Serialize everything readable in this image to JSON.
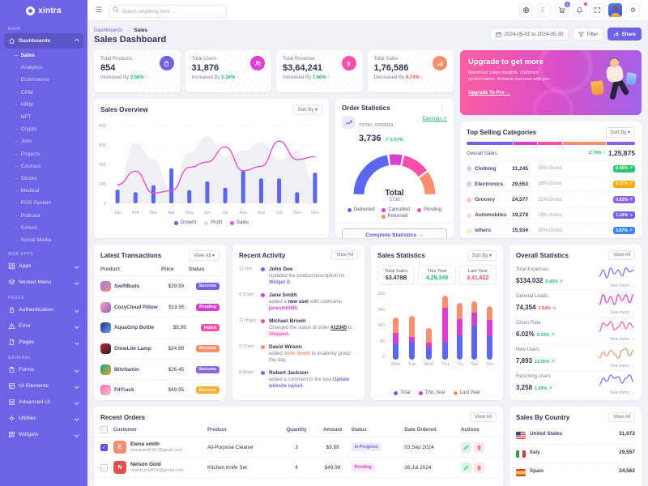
{
  "brand": {
    "name": "xintra"
  },
  "header": {
    "search_placeholder": "Search anything here ...",
    "cart_badge": "5",
    "icons": [
      "language-icon",
      "moon-icon",
      "cart-icon",
      "bell-icon",
      "fullscreen-icon",
      "avatar",
      "gear-icon"
    ]
  },
  "breadcrumb": {
    "parent": "Dashboards",
    "separator": "→",
    "current": "Sales"
  },
  "page": {
    "title": "Sales Dashboard",
    "date_range": "2024-05-01 to 2024-05-30",
    "filter_label": "Filter",
    "share_label": "Share"
  },
  "sidebar": {
    "sections": [
      {
        "heading": "MAIN",
        "items": [
          {
            "label": "Dashboards",
            "icon": "home-icon",
            "chevron": "up",
            "active": true,
            "children": [
              "Sales",
              "Analytics",
              "Ecommerce",
              "CRM",
              "HRM",
              "NFT",
              "Crypto",
              "Jobs",
              "Projects",
              "Courses",
              "Stocks",
              "Medical",
              "POS System",
              "Podcast",
              "School",
              "Social Media"
            ],
            "active_child": "Sales"
          }
        ]
      },
      {
        "heading": "WEB APPS",
        "items": [
          {
            "label": "Apps",
            "icon": "grid-icon",
            "chevron": "down"
          },
          {
            "label": "Nested Menu",
            "icon": "layers-icon",
            "chevron": "down"
          }
        ]
      },
      {
        "heading": "PAGES",
        "items": [
          {
            "label": "Authentication",
            "icon": "lock-icon",
            "chevron": "down"
          },
          {
            "label": "Error",
            "icon": "alert-icon",
            "chevron": "down"
          },
          {
            "label": "Pages",
            "icon": "file-icon",
            "chevron": "down"
          }
        ]
      },
      {
        "heading": "GENERAL",
        "items": [
          {
            "label": "Forms",
            "icon": "clipboard-icon",
            "chevron": "down"
          },
          {
            "label": "UI Elements",
            "icon": "layout-icon",
            "chevron": "down"
          },
          {
            "label": "Advanced UI",
            "icon": "stack-icon",
            "chevron": "down"
          },
          {
            "label": "Utilities",
            "icon": "tool-icon",
            "chevron": "down"
          },
          {
            "label": "Widgets",
            "icon": "widget-icon",
            "chevron": "down"
          }
        ]
      }
    ]
  },
  "kpis": [
    {
      "label": "Total Products",
      "value": "854",
      "prefix_text": "Increased By",
      "delta": "2.56%",
      "dir": "up",
      "icon": "bag-icon",
      "color": "#6e63e8"
    },
    {
      "label": "Total Users",
      "value": "31,876",
      "prefix_text": "Increased By",
      "delta": "0.34%",
      "dir": "up",
      "icon": "users-icon",
      "color": "#e13ddb"
    },
    {
      "label": "Total Revenue",
      "value": "$3,64,241",
      "prefix_text": "Increased By",
      "delta": "7.66%",
      "dir": "up",
      "icon": "dollar-icon",
      "color": "#fb4fa9"
    },
    {
      "label": "Total Sales",
      "value": "1,76,586",
      "prefix_text": "Decreased By",
      "delta": "0.74%",
      "dir": "down",
      "icon": "chart-icon",
      "color": "#fb8e6e"
    }
  ],
  "banner": {
    "title": "Upgrade to get more",
    "body": "Maximize sales insights. Optimize performance. Achieve success with pro.",
    "cta": "Upgrade To Pro →"
  },
  "panels": {
    "sales_overview": {
      "title": "Sales Overview",
      "sort_label": "Sort By ▾",
      "chart_data": {
        "type": "combo",
        "categories": [
          "Jan",
          "Feb",
          "Mar",
          "Apr",
          "May",
          "Jun",
          "Jul",
          "Agu",
          "Sep",
          "Oct",
          "Nov",
          "Dec"
        ],
        "ylim": [
          0,
          800
        ],
        "yticks": [
          0,
          200,
          400,
          600,
          800
        ],
        "series": [
          {
            "name": "Growth",
            "kind": "bar",
            "color": "#5b67f1",
            "values": [
              140,
              115,
              185,
              360,
              135,
              225,
              160,
              330,
              255,
              255,
              115,
              315
            ]
          },
          {
            "name": "Profit",
            "kind": "area",
            "color": "#ececf2",
            "legend_color": "#d9d9e3",
            "values": [
              180,
              620,
              450,
              140,
              520,
              690,
              480,
              540,
              630,
              450,
              540,
              220
            ]
          },
          {
            "name": "Sales",
            "kind": "line",
            "color": "#e354d4",
            "values": [
              190,
              330,
              105,
              130,
              370,
              425,
              580,
              335,
              380,
              640,
              450,
              480
            ]
          }
        ]
      }
    },
    "order_statistics": {
      "title": "Order Statistics",
      "total_label": "TOTAL ORDERS",
      "total": "3,736",
      "delta": "↗ 0.57%",
      "earnings_link": "Earnings ↗",
      "center_label": "Total",
      "center_value": "3736",
      "cta": "Complete Statistics →",
      "chart_data": {
        "type": "donut-semi",
        "segments": [
          {
            "name": "Delivered",
            "value": 45,
            "color": "#5b67f1"
          },
          {
            "name": "Cancelled",
            "value": 12,
            "color": "#d63fd0"
          },
          {
            "name": "Pending",
            "value": 23,
            "color": "#fb4fa9"
          },
          {
            "name": "Returned",
            "value": 20,
            "color": "#fb8e6e"
          }
        ]
      }
    },
    "top_selling": {
      "title": "Top Selling Categories",
      "sort_label": "Sort By ▾",
      "bar_segments": [
        {
          "color": "#6e63e8",
          "w": 28
        },
        {
          "color": "#d63fd0",
          "w": 14
        },
        {
          "color": "#fb4fa9",
          "w": 15
        },
        {
          "color": "#fb8e6e",
          "w": 26
        },
        {
          "color": "#8c62e9",
          "w": 17
        }
      ],
      "overall_label": "Overall Sales",
      "overall_delta": "2.74% ↑",
      "overall_value": "1,25,875",
      "rows": [
        {
          "name": "Clothing",
          "color": "#6e63e8",
          "value": "31,245",
          "gross": "25% Gross",
          "badge": "0.45% ↗",
          "badge_color": "#29c76f"
        },
        {
          "name": "Electronics",
          "color": "#d63fd0",
          "value": "29,553",
          "gross": "16% Gross",
          "badge": "0.27% ↗",
          "badge_color": "#ffab00"
        },
        {
          "name": "Grocery",
          "color": "#fb4fa9",
          "value": "24,577",
          "gross": "22% Gross",
          "badge": "0.63% ↗",
          "badge_color": "#8c62e9"
        },
        {
          "name": "Automobiles",
          "color": "#fb8e6e",
          "value": "19,278",
          "gross": "18% Gross",
          "badge": "1.14% ↘",
          "badge_color": "#6e63e8"
        },
        {
          "name": "others",
          "color": "#ffb02e",
          "value": "15,934",
          "gross": "15% Gross",
          "badge": "3.87% ↗",
          "badge_color": "#3b82f6"
        }
      ]
    },
    "transactions": {
      "title": "Latest Transactions",
      "view_all": "View All ▾",
      "columns": [
        "Product",
        "Price",
        "Status"
      ],
      "rows": [
        {
          "product": "SwiftBuds",
          "price": "$39.99",
          "status": "Success",
          "badge_color": "#6e63e8",
          "thumb": [
            "#8b7cf8",
            "#fb8e6e"
          ]
        },
        {
          "product": "CozyCloud Pillow",
          "price": "$19.95",
          "status": "Pending",
          "badge_color": "#d63fd0",
          "thumb": [
            "#f3a7c0",
            "#9f5cc0"
          ]
        },
        {
          "product": "AquaGrip Bottle",
          "price": "$9.99",
          "status": "Failed",
          "badge_color": "#fb4fa9",
          "thumb": [
            "#2a2d6e",
            "#60a5fa"
          ]
        },
        {
          "product": "GlowLite Lamp",
          "price": "$24.99",
          "status": "Success",
          "badge_color": "#fb8e6e",
          "thumb": [
            "#c02a34",
            "#2a2230"
          ]
        },
        {
          "product": "Bitvitamin",
          "price": "$26.45",
          "status": "Success",
          "badge_color": "#8c62e9",
          "thumb": [
            "#14a08c",
            "#f0a23c"
          ]
        },
        {
          "product": "FitTrack",
          "price": "$49.95",
          "status": "Success",
          "badge_color": "#ffb02e",
          "thumb": [
            "#ef6aa8",
            "#f7c4dd"
          ]
        }
      ]
    },
    "activity": {
      "title": "Recent Activity",
      "view_all": "View All",
      "items": [
        {
          "time": "12 Hrs",
          "dot": "#6e63e8",
          "name": "John Doe",
          "parts": [
            {
              "t": "Updated the product description for "
            },
            {
              "t": "Widget X.",
              "c": "#7b6cf0"
            }
          ]
        },
        {
          "time": "4:32pm",
          "dot": "#d63fd0",
          "name": "Jane Smith",
          "parts": [
            {
              "t": "added a "
            },
            {
              "t": "new user",
              "b": true
            },
            {
              "t": " with username "
            },
            {
              "t": "janesmith85.",
              "c": "#d63fd0"
            }
          ]
        },
        {
          "time": "11:45am",
          "dot": "#fb4fa9",
          "name": "Michael Brown",
          "parts": [
            {
              "t": "Changed the status of order "
            },
            {
              "t": "#12345",
              "b": true,
              "u": true
            },
            {
              "t": " to "
            },
            {
              "t": "Shipped.",
              "c": "#fb4fa9"
            }
          ]
        },
        {
          "time": "9:27am",
          "dot": "#fb8e6e",
          "name": "David Wilson",
          "parts": [
            {
              "t": "added "
            },
            {
              "t": "John Smith",
              "c": "#fb8e6e"
            },
            {
              "t": " to academy group this day."
            }
          ]
        },
        {
          "time": "8:56pm",
          "dot": "#8c62e9",
          "name": "Robert Jackson",
          "parts": [
            {
              "t": "added a comment to the task "
            },
            {
              "t": "Update website layout.",
              "c": "#7b6cf0"
            }
          ]
        }
      ]
    },
    "sales_statistics": {
      "title": "Sales Statistics",
      "sort_label": "Sort By ▾",
      "boxes": [
        {
          "label": "Total Sales",
          "value": "$3.478B",
          "color": "dark"
        },
        {
          "label": "This Year",
          "value": "4,25,349",
          "color": "green"
        },
        {
          "label": "Last Year",
          "value": "3,41,622",
          "color": "red"
        }
      ],
      "chart_data": {
        "type": "stacked-bar",
        "categories": [
          "Mon",
          "Tue",
          "Wed",
          "Thu",
          "Fri",
          "Sat",
          "Sun"
        ],
        "ylim": [
          0,
          320
        ],
        "yticks": [
          0,
          80,
          160,
          240,
          320
        ],
        "series": [
          {
            "name": "Total",
            "color": "#5b67f1",
            "values": [
              75,
              85,
              55,
              80,
              115,
              160,
              110
            ]
          },
          {
            "name": "This Year",
            "color": "#d63fd0",
            "values": [
              50,
              20,
              25,
              165,
              75,
              60,
              75
            ]
          },
          {
            "name": "Last Year",
            "color": "#fb8e6e",
            "values": [
              75,
              100,
              70,
              55,
              75,
              55,
              65
            ]
          }
        ]
      }
    },
    "overall_statistics": {
      "title": "Overall Statistics",
      "view_all": "View All",
      "see_more": "See more →",
      "rows": [
        {
          "label": "Total Expenses",
          "value": "$134,032",
          "delta": "0.45% ↗",
          "dir": "up",
          "spark_color": "#7b6cf0",
          "spark": [
            4,
            7,
            3,
            8,
            5,
            7,
            4,
            8,
            6,
            7
          ]
        },
        {
          "label": "General Leads",
          "value": "74,354",
          "delta": "3.84% ↘",
          "dir": "down",
          "spark_color": "#e13ddb",
          "spark": [
            3,
            8,
            4,
            7,
            3,
            8,
            5,
            8,
            4,
            8
          ]
        },
        {
          "label": "Churn Rate",
          "value": "6.02%",
          "delta": "0.72% ↗",
          "dir": "up",
          "spark_color": "#fb5c9f",
          "spark": [
            2,
            8,
            6,
            9,
            3,
            5,
            9,
            4,
            8,
            5
          ]
        },
        {
          "label": "New Users",
          "value": "7,893",
          "delta": "11.05% ↗",
          "dir": "up",
          "spark_color": "#fb9270",
          "spark": [
            4,
            7,
            5,
            8,
            6,
            4,
            8,
            9,
            5,
            8
          ]
        },
        {
          "label": "Returning Users",
          "value": "3,258",
          "delta": "1.69% ↗",
          "dir": "up",
          "spark_color": "#8c62e9",
          "spark": [
            3,
            7,
            5,
            9,
            7,
            8,
            4,
            7,
            9,
            5
          ]
        }
      ]
    },
    "orders": {
      "title": "Recent Orders",
      "view_all": "View All",
      "columns": [
        "Customer",
        "Product",
        "Quantity",
        "Amount",
        "Status",
        "Date Ordered",
        "Actions"
      ],
      "rows": [
        {
          "checked": true,
          "name": "Elena smith",
          "email": "elenasmith387@gmail.com",
          "avatar_color": "#fb8e6e",
          "initial": "E",
          "product": "All-Purpose Cleaner",
          "qty": "3",
          "amount": "$9.99",
          "status": "In Progress",
          "status_style": "violet",
          "date": "03,Sep 2024"
        },
        {
          "checked": false,
          "name": "Nelson Gold",
          "email": "noahrussell556@gmail.com",
          "avatar_color": "#e05252",
          "initial": "N",
          "product": "Kitchen Knife Set",
          "qty": "4",
          "amount": "$49.99",
          "status": "Pending",
          "status_style": "pink",
          "date": "26,Jul 2024"
        }
      ]
    },
    "countries": {
      "title": "Sales By Country",
      "view_all": "View All",
      "rows": [
        {
          "name": "United States",
          "flag": "us",
          "value": "31,672",
          "pct": 85,
          "color": "#5b67f1"
        },
        {
          "name": "Italy",
          "flag": "it",
          "value": "29,557",
          "pct": 97,
          "color": "#d63fd0"
        },
        {
          "name": "Spain",
          "flag": "es",
          "value": "24,562",
          "pct": 75,
          "color": "#fb4fa9"
        }
      ]
    }
  }
}
